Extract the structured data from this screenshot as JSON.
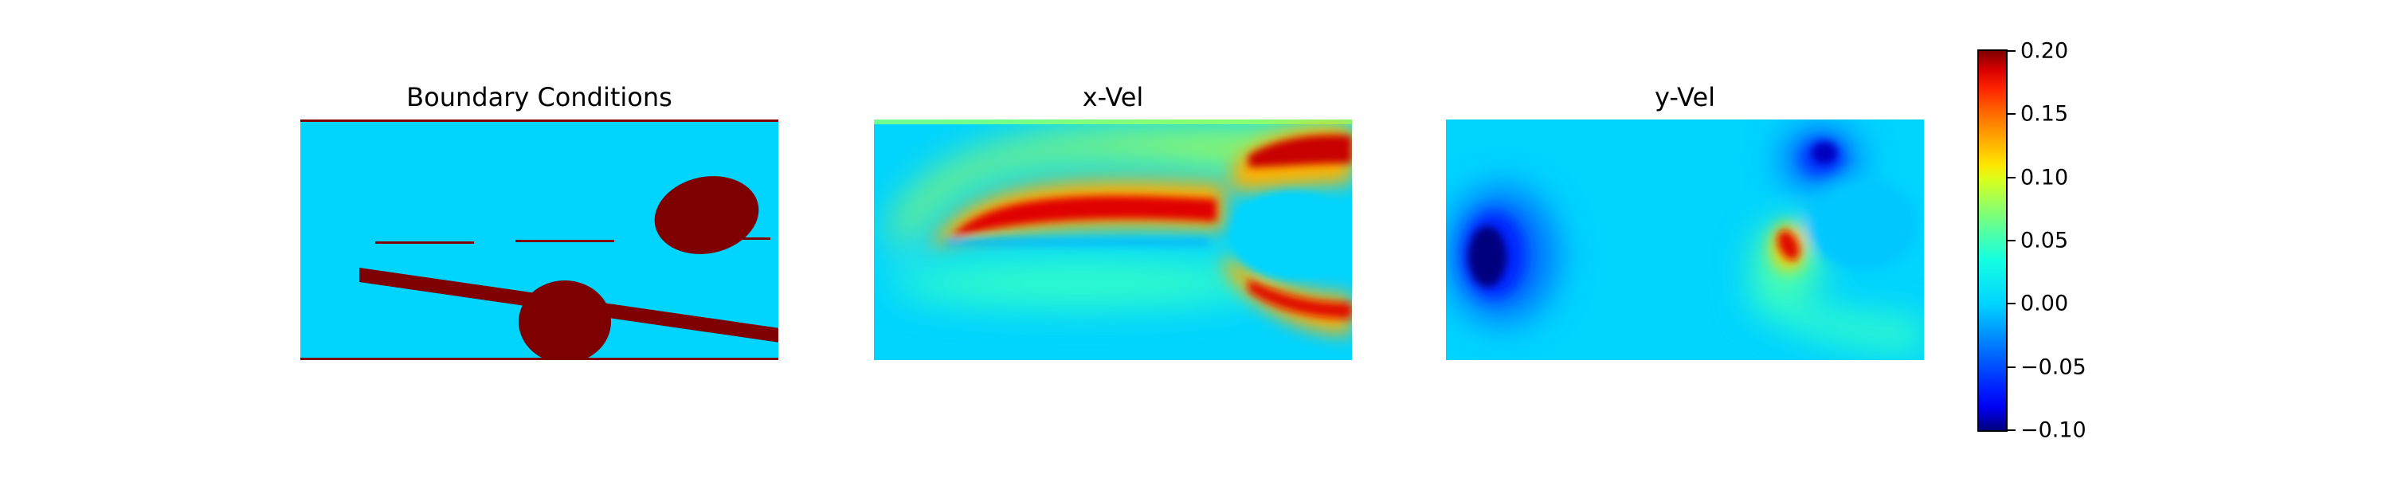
{
  "chart_data": [
    {
      "type": "heatmap",
      "title": "Boundary Conditions",
      "colors": {
        "fluid": "#00d4ff",
        "solid": "#7f0000"
      }
    },
    {
      "type": "heatmap",
      "title": "x-Vel"
    },
    {
      "type": "heatmap",
      "title": "y-Vel"
    }
  ],
  "colorbar": {
    "colormap": "jet",
    "range": [
      -0.1,
      0.2
    ],
    "ticks": [
      {
        "value": 0.2,
        "label": "0.20"
      },
      {
        "value": 0.15,
        "label": "0.15"
      },
      {
        "value": 0.1,
        "label": "0.10"
      },
      {
        "value": 0.05,
        "label": "0.05"
      },
      {
        "value": 0.0,
        "label": "0.00"
      },
      {
        "value": -0.05,
        "label": "−0.05"
      },
      {
        "value": -0.1,
        "label": "−0.10"
      }
    ]
  }
}
